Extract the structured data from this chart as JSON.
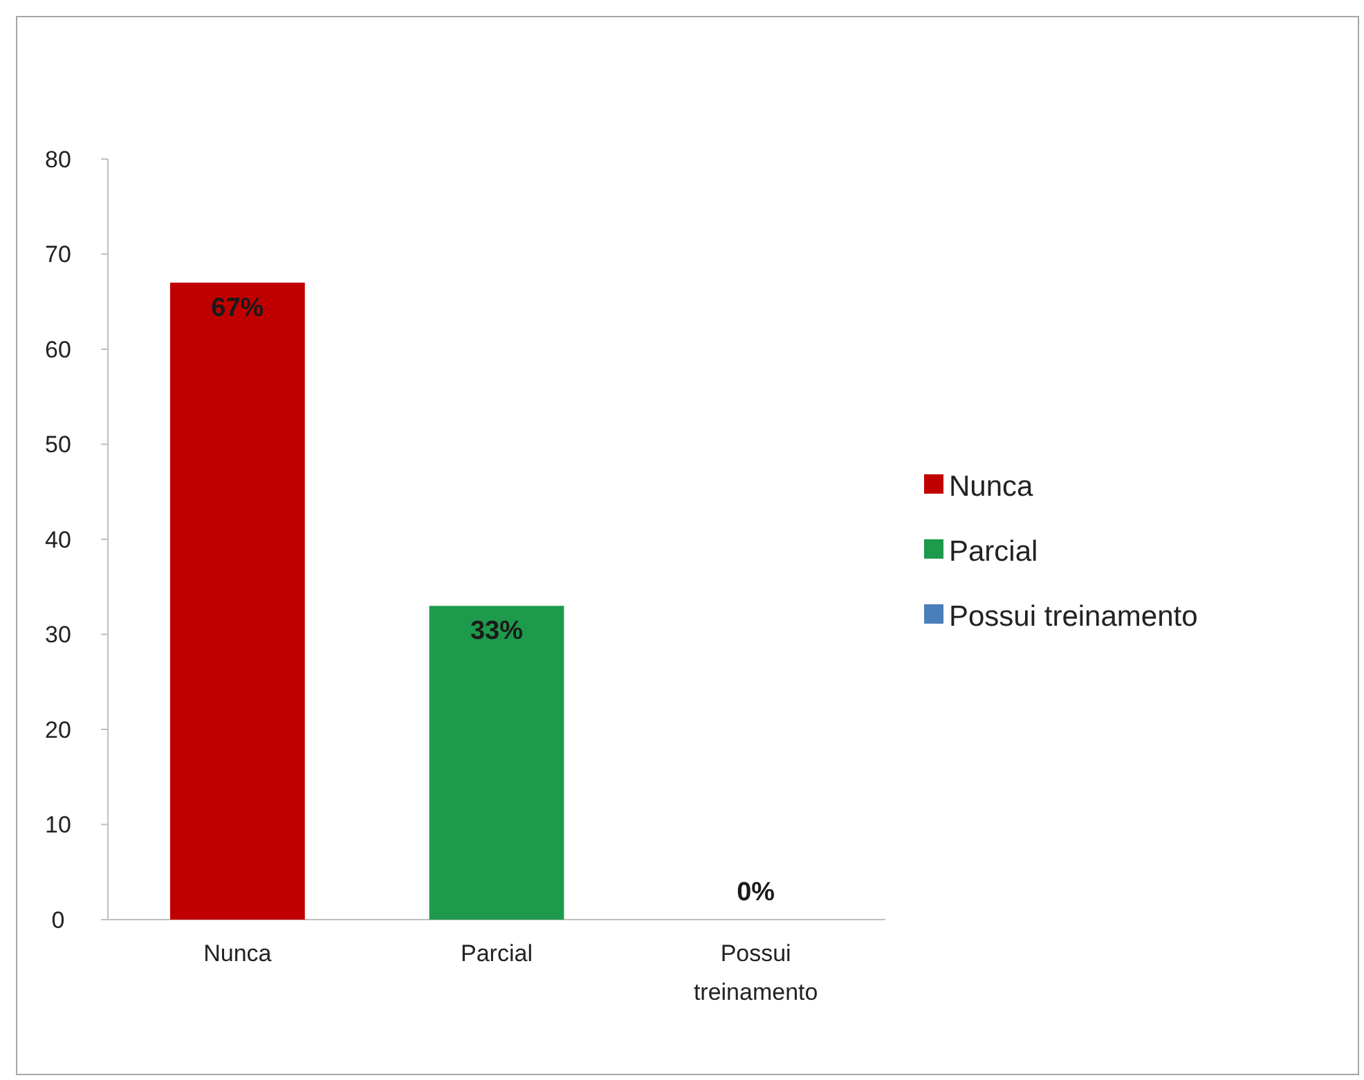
{
  "chart_data": {
    "type": "bar",
    "categories": [
      "Nunca",
      "Parcial",
      "Possui treinamento"
    ],
    "series": [
      {
        "name": "Nunca",
        "color": "#c00000",
        "values": [
          67,
          null,
          null
        ],
        "value_labels": [
          "67%",
          null,
          null
        ]
      },
      {
        "name": "Parcial",
        "color": "#1e9a4c",
        "values": [
          null,
          33,
          null
        ],
        "value_labels": [
          null,
          "33%",
          null
        ]
      },
      {
        "name": "Possui treinamento",
        "color": "#4a7ebb",
        "values": [
          null,
          null,
          0
        ],
        "value_labels": [
          null,
          null,
          "0%"
        ]
      }
    ],
    "ylim": [
      0,
      80
    ],
    "yticks": [
      0,
      10,
      20,
      30,
      40,
      50,
      60,
      70,
      80
    ],
    "grid": false,
    "legend": "right"
  }
}
